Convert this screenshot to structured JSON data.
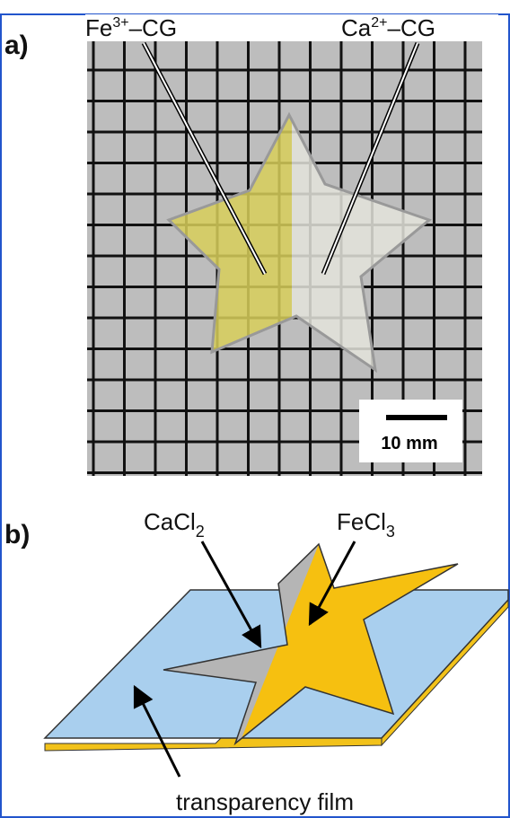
{
  "panel_a": {
    "label": "a)",
    "fe_label": {
      "base": "Fe",
      "sup": "3+",
      "rest": "–CG"
    },
    "ca_label": {
      "base": "Ca",
      "sup": "2+",
      "rest": "–CG"
    },
    "scale_bar": "10 mm"
  },
  "panel_b": {
    "label": "b)",
    "cacl2": {
      "base": "CaCl",
      "sub": "2"
    },
    "fecl3": {
      "base": "FeCl",
      "sub": "3"
    },
    "film": "transparency film"
  }
}
